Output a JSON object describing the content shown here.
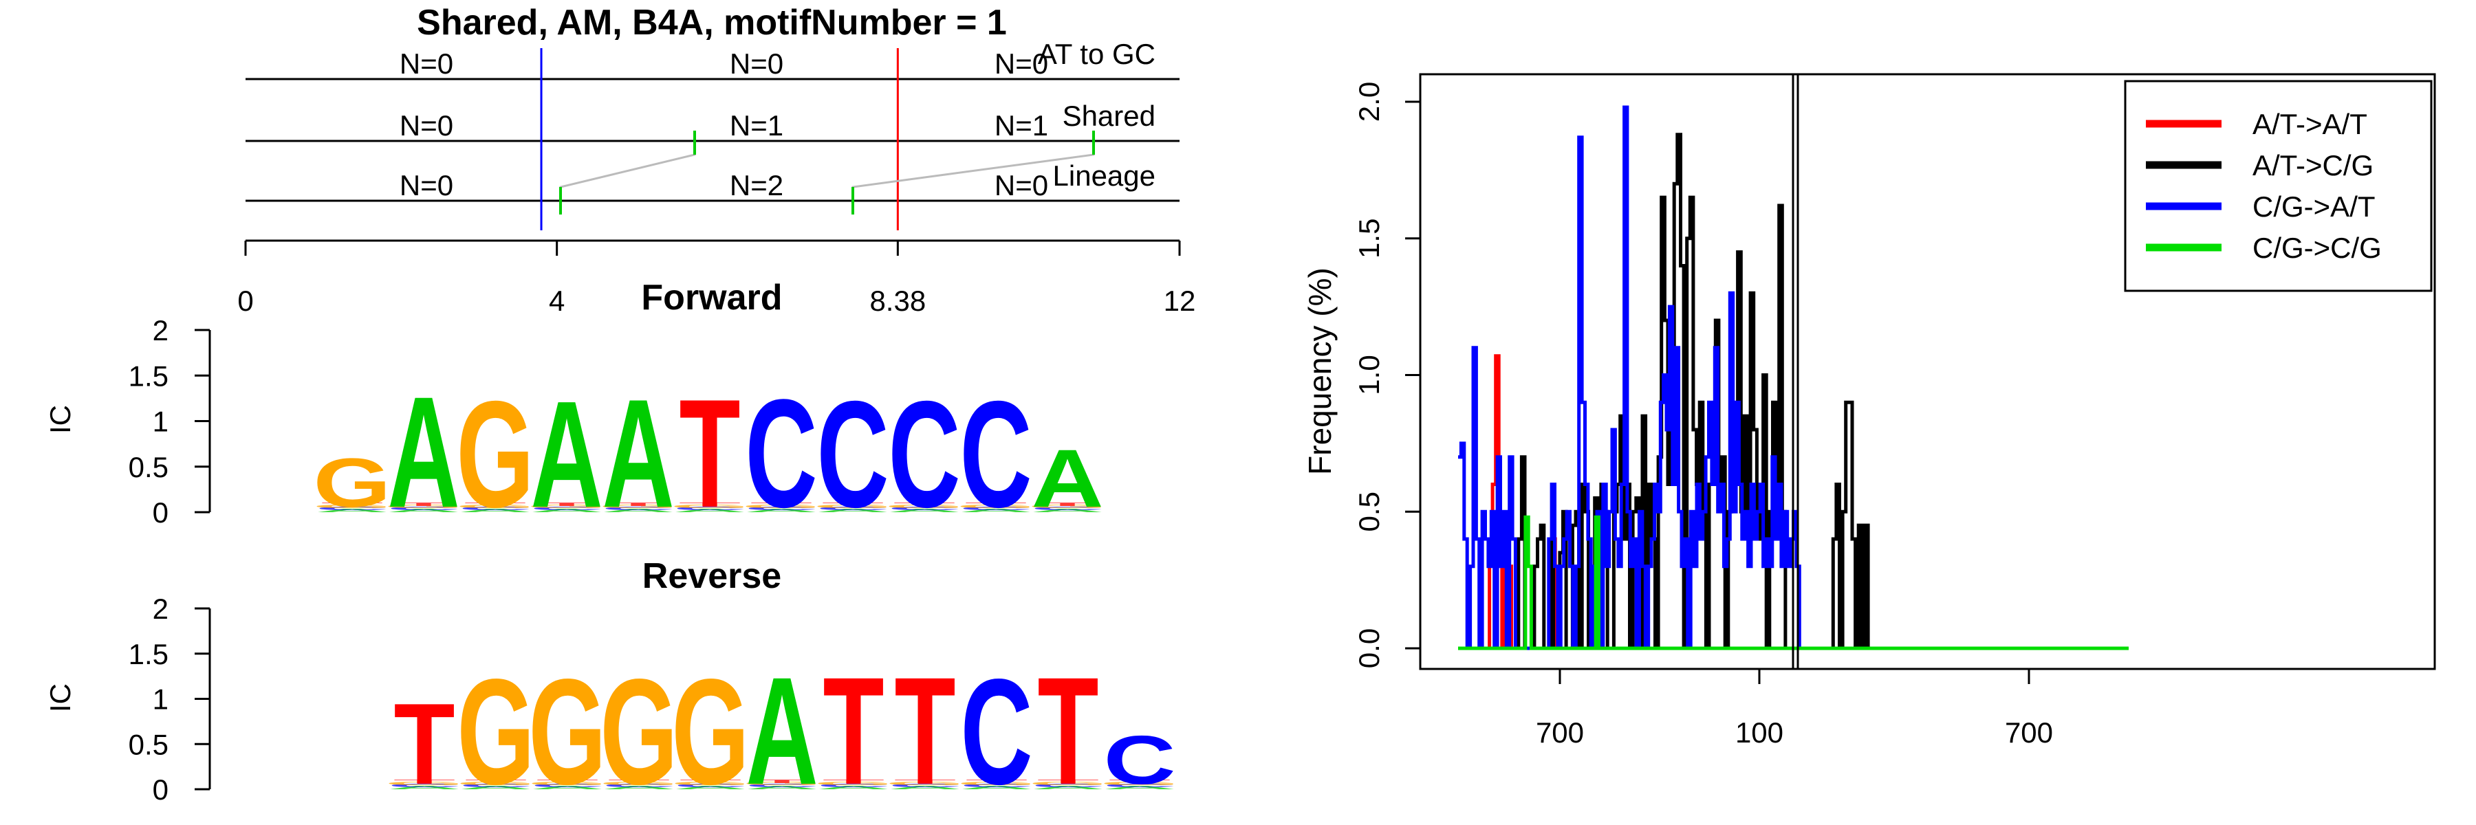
{
  "top_panel": {
    "title": "Shared, AM, B4A, motifNumber = 1",
    "rows": [
      {
        "name": "AT to GC",
        "counts": [
          "N=0",
          "N=0",
          "N=0"
        ]
      },
      {
        "name": "Shared",
        "counts": [
          "N=0",
          "N=1",
          "N=1"
        ]
      },
      {
        "name": "Lineage",
        "counts": [
          "N=0",
          "N=2",
          "N=0"
        ]
      }
    ],
    "axis_ticks": [
      "0",
      "4",
      "8.38",
      "12"
    ],
    "axis_range": [
      0,
      12
    ],
    "blue_line_at": 3.8,
    "red_line_at": 8.38,
    "colors": {
      "blue_line": "#0000ff",
      "red_line": "#ff0000",
      "connector": "#bbbbbb",
      "marker": "#00cc00"
    }
  },
  "forward_logo": {
    "title": "Forward",
    "ylabel": "IC",
    "yticks": [
      "0",
      "0.5",
      "1",
      "1.5",
      "2"
    ],
    "ylim": [
      0,
      2
    ],
    "sequence": [
      {
        "letter": "G",
        "ic": 0.55
      },
      {
        "letter": "A",
        "ic": 1.25
      },
      {
        "letter": "G",
        "ic": 1.2
      },
      {
        "letter": "A",
        "ic": 1.2
      },
      {
        "letter": "A",
        "ic": 1.22
      },
      {
        "letter": "T",
        "ic": 1.22
      },
      {
        "letter": "C",
        "ic": 1.22
      },
      {
        "letter": "C",
        "ic": 1.2
      },
      {
        "letter": "C",
        "ic": 1.2
      },
      {
        "letter": "C",
        "ic": 1.2
      },
      {
        "letter": "A",
        "ic": 0.65
      }
    ]
  },
  "reverse_logo": {
    "title": "Reverse",
    "ylabel": "IC",
    "yticks": [
      "0",
      "0.5",
      "1",
      "1.5",
      "2"
    ],
    "ylim": [
      0,
      2
    ],
    "sequence": [
      {
        "letter": "T",
        "ic": 0.92
      },
      {
        "letter": "G",
        "ic": 1.2
      },
      {
        "letter": "G",
        "ic": 1.2
      },
      {
        "letter": "G",
        "ic": 1.2
      },
      {
        "letter": "G",
        "ic": 1.2
      },
      {
        "letter": "A",
        "ic": 1.22
      },
      {
        "letter": "T",
        "ic": 1.22
      },
      {
        "letter": "T",
        "ic": 1.22
      },
      {
        "letter": "C",
        "ic": 1.2
      },
      {
        "letter": "T",
        "ic": 1.22
      },
      {
        "letter": "C",
        "ic": 0.55
      }
    ]
  },
  "logo_colors": {
    "A": "#00cc00",
    "C": "#0000ff",
    "G": "#ffa500",
    "T": "#ff0000"
  },
  "chart_data": {
    "type": "line",
    "ylabel": "Frequency (%)",
    "ylim": [
      0,
      2.0
    ],
    "yticks": [
      "0.0",
      "0.5",
      "1.0",
      "1.5",
      "2.0"
    ],
    "xticks": [
      "700",
      "100",
      "700"
    ],
    "grid": false,
    "legend_position": "top-right",
    "legend": [
      "A/T->A/T",
      "A/T->C/G",
      "C/G->A/T",
      "C/G->C/G"
    ],
    "series": [
      {
        "name": "A/T->A/T",
        "color": "#ff0000",
        "values": [
          0,
          0,
          0,
          0,
          0,
          0,
          0,
          0,
          0,
          0,
          0.4,
          0.6,
          1.07,
          0.4,
          0,
          0.4,
          0.3,
          0,
          0,
          0,
          0,
          0,
          0,
          0,
          0,
          0,
          0,
          0,
          0,
          0,
          0.4,
          0,
          0,
          0,
          0,
          0,
          0,
          0,
          0,
          0,
          0,
          0,
          0,
          0,
          0,
          0,
          0,
          0,
          0,
          0,
          0,
          0,
          0,
          0,
          0,
          0,
          0,
          0,
          0,
          0,
          0,
          0,
          0,
          0,
          0,
          0,
          0,
          0,
          0,
          0,
          0,
          0,
          0,
          0,
          0,
          0,
          0,
          0,
          0,
          0,
          0,
          0,
          0,
          0,
          0,
          0,
          0,
          0,
          0,
          0,
          0,
          0,
          0,
          0,
          0,
          0,
          0,
          0,
          0,
          0,
          0,
          0,
          0,
          0,
          0,
          0,
          0,
          0,
          0,
          0,
          0,
          0,
          0,
          0,
          0,
          0,
          0,
          0,
          0,
          0,
          0,
          0,
          0,
          0,
          0,
          0,
          0,
          0,
          0,
          0,
          0,
          0,
          0,
          0,
          0,
          0,
          0,
          0,
          0,
          0,
          0,
          0,
          0,
          0,
          0,
          0,
          0,
          0,
          0,
          0,
          0,
          0,
          0,
          0,
          0,
          0,
          0,
          0,
          0,
          0,
          0,
          0,
          0,
          0,
          0,
          0,
          0,
          0,
          0,
          0,
          0,
          0,
          0,
          0,
          0,
          0,
          0,
          0,
          0,
          0,
          0,
          0,
          0,
          0,
          0,
          0,
          0,
          0,
          0,
          0,
          0,
          0,
          0,
          0,
          0,
          0,
          0,
          0,
          0,
          0,
          0,
          0,
          0,
          0,
          0,
          0,
          0,
          0,
          0,
          0,
          0,
          0,
          0,
          0
        ]
      },
      {
        "name": "A/T->C/G",
        "color": "#000000",
        "values": [
          0,
          0,
          0,
          0,
          0,
          0,
          0,
          0,
          0,
          0,
          0,
          0,
          0,
          0,
          0,
          0,
          0,
          0,
          0,
          0.4,
          0.7,
          0,
          0,
          0,
          0.3,
          0.4,
          0.45,
          0,
          0,
          0.4,
          0,
          0,
          0.35,
          0.5,
          0,
          0,
          0.45,
          0.5,
          0,
          0.6,
          0.5,
          0,
          0,
          0.55,
          0,
          0.6,
          0.5,
          0,
          0,
          0.5,
          0.6,
          0.85,
          0.4,
          0.6,
          0,
          0.5,
          0.55,
          0,
          0.85,
          0.3,
          0.6,
          0.4,
          0,
          0.7,
          1.65,
          1.2,
          0.6,
          0.9,
          1.7,
          1.88,
          1.4,
          0,
          1.5,
          1.65,
          0.8,
          0.6,
          0.9,
          0.5,
          0,
          0.6,
          0.7,
          1.2,
          0.6,
          0.7,
          0,
          0.5,
          0.7,
          0.8,
          1.45,
          0.5,
          0.85,
          0.4,
          1.3,
          0.8,
          0.4,
          0.6,
          1.0,
          0,
          0.5,
          0.9,
          0.4,
          1.62,
          0.5,
          0,
          0,
          0,
          0,
          0,
          0,
          0,
          0,
          0,
          0,
          0,
          0,
          0,
          0,
          0,
          0.4,
          0.6,
          0,
          0.5,
          0.9,
          0.9,
          0.4,
          0,
          0.45,
          0,
          0.45,
          0,
          0,
          0,
          0,
          0,
          0,
          0,
          0,
          0,
          0,
          0,
          0,
          0,
          0,
          0,
          0,
          0,
          0,
          0,
          0,
          0,
          0,
          0,
          0,
          0,
          0,
          0,
          0,
          0,
          0,
          0,
          0,
          0,
          0,
          0,
          0,
          0,
          0,
          0,
          0,
          0,
          0,
          0,
          0,
          0,
          0,
          0,
          0,
          0,
          0,
          0,
          0,
          0,
          0,
          0,
          0,
          0,
          0,
          0,
          0,
          0,
          0,
          0,
          0,
          0,
          0,
          0,
          0,
          0,
          0,
          0,
          0,
          0,
          0,
          0,
          0,
          0,
          0,
          0,
          0,
          0,
          0
        ]
      },
      {
        "name": "C/G->A/T",
        "color": "#0000ff",
        "values": [
          0.7,
          0.75,
          0.4,
          0,
          0.3,
          1.1,
          0.4,
          0,
          0.5,
          0.4,
          0.3,
          0.5,
          0,
          0.7,
          0.3,
          0.5,
          0,
          0.7,
          0.4,
          0,
          0,
          0,
          0,
          0,
          0,
          0,
          0,
          0,
          0,
          0,
          0.4,
          0.6,
          0.3,
          0,
          0.3,
          0.4,
          0.5,
          0.3,
          0,
          0.3,
          1.87,
          0.9,
          0.6,
          0.4,
          0,
          0.3,
          0.5,
          0,
          0.6,
          0.3,
          0.5,
          0.8,
          0.4,
          0.3,
          0.6,
          1.98,
          0.5,
          0.3,
          0.4,
          0,
          0.5,
          0.3,
          0,
          0.3,
          0.4,
          0.6,
          0.5,
          0.9,
          1.0,
          0.8,
          1.25,
          0.6,
          1.1,
          0.5,
          0.3,
          0.4,
          0,
          0.5,
          0.3,
          0.6,
          0.4,
          0.5,
          0.7,
          0.9,
          0.6,
          1.1,
          0.5,
          0.6,
          0.3,
          0.4,
          1.3,
          0.5,
          0.9,
          0.6,
          0.4,
          0.5,
          0.3,
          0.6,
          0.4,
          0.5,
          0.6,
          0.3,
          0.4,
          0.3,
          0.7,
          0.4,
          0.6,
          0.3,
          0.5,
          0.3,
          0.4,
          0.5,
          0.3,
          0,
          0,
          0,
          0,
          0,
          0,
          0,
          0,
          0,
          0,
          0,
          0,
          0,
          0,
          0,
          0,
          0,
          0,
          0,
          0,
          0,
          0,
          0,
          0,
          0,
          0,
          0,
          0,
          0,
          0,
          0,
          0,
          0,
          0,
          0,
          0,
          0,
          0,
          0,
          0,
          0,
          0,
          0,
          0,
          0,
          0,
          0,
          0,
          0,
          0,
          0,
          0,
          0,
          0,
          0,
          0,
          0,
          0,
          0,
          0,
          0,
          0,
          0,
          0,
          0,
          0,
          0,
          0,
          0,
          0,
          0,
          0,
          0,
          0,
          0,
          0,
          0,
          0,
          0,
          0,
          0,
          0,
          0,
          0,
          0,
          0,
          0,
          0,
          0,
          0,
          0,
          0,
          0,
          0,
          0,
          0,
          0,
          0,
          0,
          0,
          0,
          0,
          0,
          0,
          0,
          0,
          0,
          0,
          0
        ]
      },
      {
        "name": "C/G->C/G",
        "color": "#00dd00",
        "values": [
          0,
          0,
          0,
          0,
          0,
          0,
          0,
          0,
          0,
          0,
          0,
          0,
          0,
          0,
          0,
          0,
          0,
          0,
          0,
          0,
          0,
          0,
          0,
          0.48,
          0.3,
          0,
          0,
          0,
          0,
          0,
          0,
          0,
          0,
          0,
          0,
          0,
          0,
          0,
          0,
          0,
          0,
          0,
          0,
          0,
          0,
          0,
          0,
          0.48,
          0,
          0,
          0,
          0,
          0,
          0,
          0,
          0,
          0,
          0,
          0,
          0,
          0,
          0,
          0,
          0,
          0,
          0,
          0,
          0,
          0,
          0,
          0,
          0,
          0,
          0,
          0,
          0,
          0,
          0,
          0,
          0,
          0,
          0,
          0,
          0,
          0,
          0,
          0,
          0,
          0,
          0,
          0,
          0,
          0,
          0,
          0,
          0,
          0,
          0,
          0,
          0,
          0,
          0,
          0,
          0,
          0,
          0,
          0,
          0,
          0,
          0,
          0,
          0,
          0,
          0,
          0,
          0,
          0,
          0,
          0,
          0,
          0,
          0,
          0,
          0,
          0,
          0,
          0,
          0,
          0,
          0,
          0,
          0,
          0,
          0,
          0,
          0,
          0,
          0,
          0,
          0,
          0,
          0,
          0,
          0,
          0,
          0,
          0,
          0,
          0,
          0,
          0,
          0,
          0,
          0,
          0,
          0,
          0,
          0,
          0,
          0,
          0,
          0,
          0,
          0,
          0,
          0,
          0,
          0,
          0,
          0,
          0,
          0,
          0,
          0,
          0,
          0,
          0,
          0,
          0,
          0,
          0,
          0,
          0,
          0,
          0,
          0,
          0,
          0,
          0,
          0,
          0,
          0,
          0,
          0,
          0,
          0,
          0,
          0,
          0,
          0,
          0,
          0,
          0,
          0,
          0,
          0,
          0,
          0,
          0,
          0,
          0,
          0,
          0,
          0,
          0,
          0,
          0,
          0,
          0,
          0,
          0,
          0,
          0,
          0,
          0,
          0,
          0,
          0,
          0
        ]
      }
    ]
  }
}
